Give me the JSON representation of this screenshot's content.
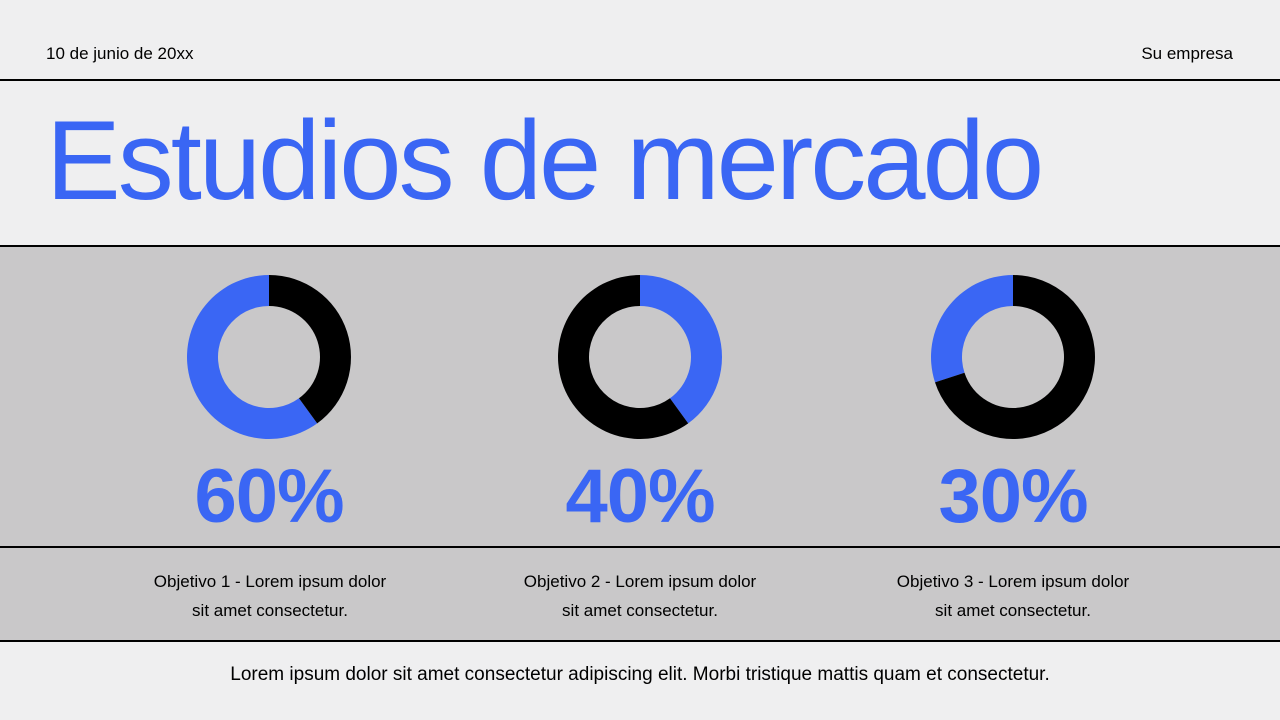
{
  "header": {
    "date": "10 de junio de 20xx",
    "company": "Su empresa"
  },
  "title": "Estudios de mercado",
  "colors": {
    "accent": "#3a66f4",
    "dark": "#000000",
    "band": "#c9c8c9"
  },
  "chart_data": [
    {
      "type": "pie",
      "values": [
        60,
        40
      ],
      "label": "60%"
    },
    {
      "type": "pie",
      "values": [
        40,
        60
      ],
      "label": "40%"
    },
    {
      "type": "pie",
      "values": [
        30,
        70
      ],
      "label": "30%"
    }
  ],
  "objectives": [
    {
      "line1": "Objetivo 1 - Lorem ipsum dolor",
      "line2": "sit amet consectetur."
    },
    {
      "line1": "Objetivo 2 - Lorem ipsum dolor",
      "line2": "sit amet consectetur."
    },
    {
      "line1": "Objetivo 3 - Lorem ipsum dolor",
      "line2": "sit amet consectetur."
    }
  ],
  "footer": "Lorem ipsum dolor sit amet consectetur adipiscing elit. Morbi tristique mattis quam et consectetur."
}
